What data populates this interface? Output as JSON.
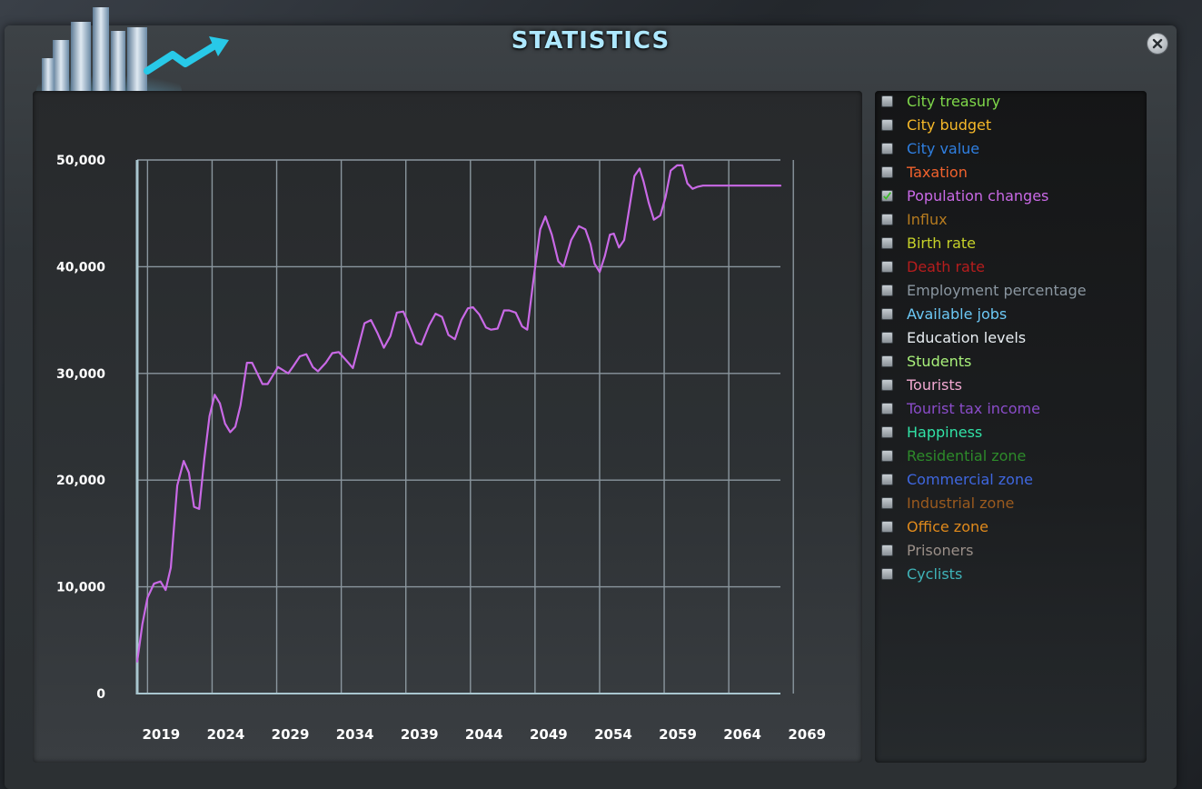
{
  "window": {
    "title": "STATISTICS",
    "logo_icon": "city-skyline-growth-icon",
    "close_icon": "close-icon"
  },
  "legend": {
    "items": [
      {
        "label": "City treasury",
        "color": "#7fd84a",
        "checked": false
      },
      {
        "label": "City budget",
        "color": "#f6b829",
        "checked": false
      },
      {
        "label": "City value",
        "color": "#2f7fe0",
        "checked": false
      },
      {
        "label": "Taxation",
        "color": "#f0622d",
        "checked": false
      },
      {
        "label": "Population changes",
        "color": "#c969e6",
        "checked": true
      },
      {
        "label": "Influx",
        "color": "#b67b1f",
        "checked": false
      },
      {
        "label": "Birth rate",
        "color": "#c6d129",
        "checked": false
      },
      {
        "label": "Death rate",
        "color": "#b61d1d",
        "checked": false
      },
      {
        "label": "Employment percentage",
        "color": "#8a96a0",
        "checked": false
      },
      {
        "label": "Available jobs",
        "color": "#6cc8f5",
        "checked": false
      },
      {
        "label": "Education levels",
        "color": "#e8eef2",
        "checked": false
      },
      {
        "label": "Students",
        "color": "#a8f07a",
        "checked": false
      },
      {
        "label": "Tourists",
        "color": "#f2a9d2",
        "checked": false
      },
      {
        "label": "Tourist tax income",
        "color": "#8a4cc9",
        "checked": false
      },
      {
        "label": "Happiness",
        "color": "#31e2a6",
        "checked": false
      },
      {
        "label": "Residential zone",
        "color": "#2d8a2a",
        "checked": false
      },
      {
        "label": "Commercial zone",
        "color": "#3f67e0",
        "checked": false
      },
      {
        "label": "Industrial zone",
        "color": "#9a5a1e",
        "checked": false
      },
      {
        "label": "Office zone",
        "color": "#e08a1c",
        "checked": false
      },
      {
        "label": "Prisoners",
        "color": "#9a8f88",
        "checked": false
      },
      {
        "label": "Cyclists",
        "color": "#3fb3b8",
        "checked": false
      }
    ]
  },
  "chart_data": {
    "type": "line",
    "grid": true,
    "ylim": [
      0,
      50000
    ],
    "xlim": [
      2018.2,
      2068.0
    ],
    "y_ticks": [
      "0",
      "10,000",
      "20,000",
      "30,000",
      "40,000",
      "50,000"
    ],
    "y_tick_values": [
      0,
      10000,
      20000,
      30000,
      40000,
      50000
    ],
    "x_ticks": [
      "2019",
      "2024",
      "2029",
      "2034",
      "2039",
      "2044",
      "2049",
      "2054",
      "2059",
      "2064",
      "2069"
    ],
    "x_tick_values": [
      2019,
      2024,
      2029,
      2034,
      2039,
      2044,
      2049,
      2054,
      2059,
      2064,
      2069
    ],
    "series": [
      {
        "color": "#c969e6",
        "x": [
          2018.2,
          2018.6,
          2019.0,
          2019.5,
          2020.0,
          2020.4,
          2020.8,
          2021.3,
          2021.8,
          2022.2,
          2022.6,
          2023.0,
          2023.4,
          2023.8,
          2024.2,
          2024.6,
          2025.0,
          2025.4,
          2025.8,
          2026.2,
          2026.7,
          2027.1,
          2027.5,
          2027.9,
          2028.3,
          2028.7,
          2029.1,
          2029.5,
          2029.9,
          2030.3,
          2030.8,
          2031.3,
          2031.8,
          2032.2,
          2032.8,
          2033.3,
          2033.8,
          2034.4,
          2034.9,
          2035.4,
          2035.8,
          2036.3,
          2036.8,
          2037.3,
          2037.8,
          2038.3,
          2038.8,
          2039.3,
          2039.8,
          2040.2,
          2040.8,
          2041.3,
          2041.8,
          2042.3,
          2042.8,
          2043.3,
          2043.8,
          2044.2,
          2044.7,
          2045.2,
          2045.6,
          2046.1,
          2046.6,
          2047.0,
          2047.5,
          2048.0,
          2048.4,
          2048.9,
          2049.4,
          2049.8,
          2050.3,
          2050.8,
          2051.2,
          2051.8,
          2052.4,
          2052.9,
          2053.3,
          2053.6,
          2054.0,
          2054.4,
          2054.8,
          2055.1,
          2055.5,
          2055.9,
          2056.3,
          2056.7,
          2057.1,
          2057.4,
          2057.8,
          2058.2,
          2058.7,
          2059.1,
          2059.5,
          2060.0,
          2060.4,
          2060.8,
          2061.2,
          2061.6,
          2062.0,
          2062.4,
          2062.8,
          2063.2,
          2063.5,
          2063.9,
          2064.3,
          2064.7,
          2065.0,
          2065.4,
          2065.8,
          2066.1,
          2066.5,
          2066.9,
          2067.3,
          2067.6,
          2068.0
        ],
        "y": [
          3000,
          6500,
          9000,
          10300,
          10500,
          9700,
          11800,
          19500,
          21800,
          20700,
          17500,
          17300,
          22000,
          26000,
          28000,
          27200,
          25300,
          24500,
          25000,
          27000,
          31000,
          31000,
          30000,
          29000,
          29000,
          29800,
          30600,
          30300,
          30000,
          30700,
          31600,
          31800,
          30600,
          30200,
          31000,
          31900,
          32000,
          31200,
          30500,
          32800,
          34700,
          35000,
          33800,
          32400,
          33500,
          35700,
          35800,
          34400,
          32900,
          32700,
          34500,
          35600,
          35300,
          33600,
          33200,
          35000,
          36100,
          36200,
          35500,
          34300,
          34100,
          34200,
          35900,
          35900,
          35700,
          34400,
          34100,
          39000,
          43500,
          44700,
          43000,
          40500,
          40000,
          42500,
          43800,
          43500,
          42100,
          40300,
          39500,
          41000,
          43000,
          43100,
          41800,
          42500,
          45500,
          48500,
          49200,
          48000,
          46000,
          44400,
          44800,
          46500,
          49000,
          49500,
          49500,
          47800,
          47300,
          47500,
          47600,
          47600,
          47600,
          47600,
          47600,
          47600,
          47600,
          47600,
          47600,
          47600,
          47600,
          47600,
          47600,
          47600,
          47600,
          47600,
          47600
        ]
      }
    ]
  }
}
